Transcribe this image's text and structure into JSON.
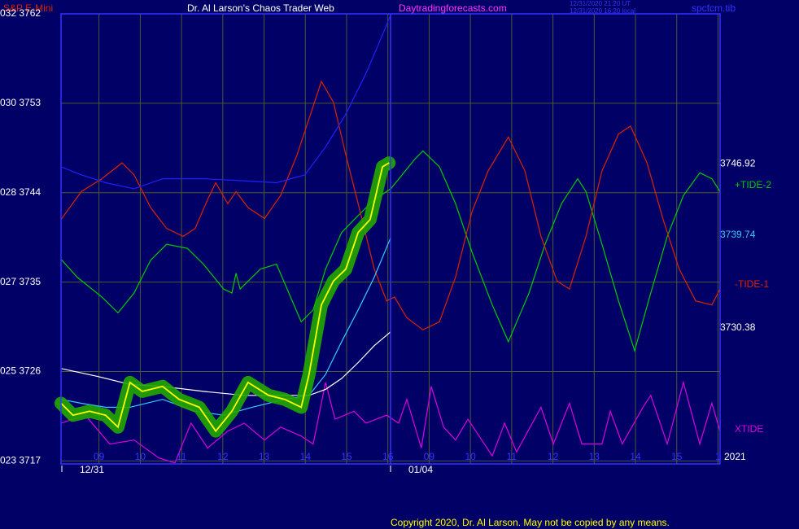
{
  "chart_data": {
    "type": "line",
    "title": "Dr. Al Larson's Chaos Trader Web",
    "instrument": "S&P E-Mini",
    "site": "Daytradingforecasts.com",
    "stamp": [
      "12/31/2020 21:20 UT",
      "12/31/2020 16:20 local"
    ],
    "file": "spcfcm.tib",
    "year": "2021",
    "copyright": "Copyright 2020, Dr. Al Larson. May not be copied by any means.",
    "date_labels": [
      "12/31",
      "01/04"
    ],
    "grid": true,
    "xlim": [
      0.08,
      16.05
    ],
    "ylim": [
      3716.7,
      3762
    ],
    "yticks": [
      {
        "value": 3762,
        "label": "032  3762"
      },
      {
        "value": 3753,
        "label": "030  3753"
      },
      {
        "value": 3744,
        "label": "028  3744"
      },
      {
        "value": 3735,
        "label": "027  3735"
      },
      {
        "value": 3726,
        "label": "025  3726"
      },
      {
        "value": 3717,
        "label": "023  3717"
      }
    ],
    "xticks": [
      {
        "value": 1,
        "label": "09"
      },
      {
        "value": 2,
        "label": "10"
      },
      {
        "value": 3,
        "label": "11"
      },
      {
        "value": 4,
        "label": "12"
      },
      {
        "value": 5,
        "label": "13"
      },
      {
        "value": 6,
        "label": "14"
      },
      {
        "value": 7,
        "label": "15"
      },
      {
        "value": 8,
        "label": "16"
      },
      {
        "value": 9,
        "label": "09"
      },
      {
        "value": 10,
        "label": "10"
      },
      {
        "value": 11,
        "label": "11"
      },
      {
        "value": 12,
        "label": "12"
      },
      {
        "value": 13,
        "label": "13"
      },
      {
        "value": 14,
        "label": "14"
      },
      {
        "value": 15,
        "label": "15"
      },
      {
        "value": 16,
        "label": "1"
      }
    ],
    "series": [
      {
        "name": "+TIDE-2",
        "color": "#00cc00",
        "x": [
          0.08,
          0.47,
          1.07,
          1.46,
          1.85,
          2.25,
          2.64,
          3.14,
          3.53,
          4.02,
          4.22,
          4.32,
          4.42,
          4.91,
          5.3,
          5.6,
          5.9,
          6.19,
          6.49,
          6.88,
          7.28,
          7.67,
          8.07,
          8.66,
          8.85,
          9.25,
          9.64,
          10.04,
          10.53,
          10.92,
          11.42,
          11.81,
          12.21,
          12.6,
          12.8,
          13.19,
          13.59,
          13.98,
          14.37,
          14.77,
          15.16,
          15.56,
          15.85,
          16.05
        ],
        "values": [
          3737.3,
          3735.5,
          3733.5,
          3731.9,
          3733.9,
          3737.2,
          3738.8,
          3738.4,
          3736.8,
          3734.3,
          3733.9,
          3735.9,
          3734.3,
          3736.3,
          3736.8,
          3733.9,
          3731.0,
          3732.2,
          3736.3,
          3740.0,
          3741.7,
          3743.3,
          3744.4,
          3747.4,
          3748.2,
          3746.6,
          3742.9,
          3738.0,
          3732.7,
          3729.0,
          3733.9,
          3738.8,
          3742.9,
          3745.4,
          3744.1,
          3738.8,
          3733.1,
          3728.1,
          3733.9,
          3739.6,
          3743.7,
          3746.0,
          3745.4,
          3744.1
        ]
      },
      {
        "name": "-TIDE-1",
        "color": "#dd2200",
        "x": [
          0.08,
          0.57,
          1.07,
          1.56,
          1.85,
          2.25,
          2.64,
          3.04,
          3.33,
          3.63,
          3.83,
          4.12,
          4.32,
          4.61,
          5.01,
          5.4,
          5.8,
          6.19,
          6.39,
          6.68,
          6.98,
          7.28,
          7.67,
          7.97,
          8.16,
          8.46,
          8.85,
          9.25,
          9.64,
          10.04,
          10.43,
          10.92,
          11.32,
          11.71,
          12.1,
          12.4,
          12.8,
          13.19,
          13.59,
          13.88,
          14.28,
          14.67,
          15.06,
          15.46,
          15.85,
          16.05
        ],
        "values": [
          3741.3,
          3744.1,
          3745.4,
          3747.0,
          3745.8,
          3742.5,
          3740.4,
          3739.6,
          3740.4,
          3743.3,
          3745.0,
          3742.9,
          3744.1,
          3742.5,
          3741.4,
          3743.7,
          3747.8,
          3752.7,
          3755.2,
          3753.1,
          3747.8,
          3742.9,
          3736.3,
          3733.1,
          3733.5,
          3731.4,
          3730.2,
          3731.0,
          3735.5,
          3742.1,
          3746.2,
          3749.6,
          3746.2,
          3739.6,
          3735.1,
          3734.3,
          3739.6,
          3746.2,
          3749.9,
          3750.7,
          3747.0,
          3741.3,
          3736.3,
          3733.1,
          3732.7,
          3734.3
        ]
      },
      {
        "name": "XTIDE",
        "color": "#dd00dd",
        "x": [
          0.08,
          0.67,
          1.26,
          1.85,
          2.45,
          2.84,
          3.23,
          3.63,
          4.12,
          4.52,
          5.01,
          5.4,
          5.9,
          6.19,
          6.49,
          6.72,
          7.18,
          7.47,
          7.97,
          8.26,
          8.46,
          8.81,
          9.05,
          9.35,
          9.64,
          9.94,
          10.53,
          10.83,
          11.12,
          11.71,
          12.01,
          12.4,
          12.7,
          13.19,
          13.39,
          13.68,
          14.18,
          14.37,
          14.77,
          15.16,
          15.56,
          15.85,
          16.05
        ],
        "values": [
          3720.8,
          3721.6,
          3718.7,
          3719.1,
          3717.3,
          3716.8,
          3720.8,
          3718.3,
          3720.0,
          3720.8,
          3719.1,
          3720.4,
          3719.5,
          3718.7,
          3724.9,
          3721.2,
          3722.0,
          3720.8,
          3721.6,
          3720.8,
          3723.2,
          3718.3,
          3724.5,
          3720.4,
          3719.1,
          3721.2,
          3717.5,
          3720.8,
          3717.9,
          3722.4,
          3718.7,
          3722.8,
          3718.7,
          3718.7,
          3722.0,
          3718.7,
          3722.4,
          3723.6,
          3718.7,
          3724.9,
          3718.7,
          3722.8,
          3720.0
        ]
      },
      {
        "color": "#2020ff",
        "x": [
          0.08,
          0.57,
          1.16,
          1.85,
          2.54,
          3.53,
          4.52,
          5.3,
          5.99,
          6.49,
          6.98,
          7.47,
          7.77,
          8.07
        ],
        "values": [
          3746.6,
          3745.8,
          3745.0,
          3744.4,
          3745.4,
          3745.4,
          3745.2,
          3745.0,
          3745.8,
          3748.6,
          3751.9,
          3756.0,
          3758.9,
          3761.9
        ]
      },
      {
        "color": "#33ccff",
        "last_label": 3739.74,
        "x": [
          0.08,
          0.57,
          1.16,
          1.75,
          2.54,
          3.33,
          4.02,
          4.71,
          5.5,
          6.09,
          6.49,
          6.88,
          7.28,
          7.67,
          8.07
        ],
        "values": [
          3723.2,
          3722.8,
          3722.4,
          3722.4,
          3723.2,
          3722.0,
          3721.6,
          3722.4,
          3723.2,
          3723.6,
          3725.7,
          3729.0,
          3732.2,
          3735.5,
          3739.5
        ]
      },
      {
        "color": "#ffffff",
        "last_label": 3730.38,
        "x": [
          0.08,
          0.97,
          1.75,
          2.54,
          3.53,
          4.52,
          5.5,
          6.09,
          6.49,
          6.88,
          7.28,
          7.67,
          8.07
        ],
        "values": [
          3726.3,
          3725.5,
          3724.7,
          3724.5,
          3724.0,
          3723.6,
          3723.6,
          3723.6,
          3724.2,
          3725.3,
          3726.9,
          3728.6,
          3730.0
        ]
      },
      {
        "color": "#ffff00",
        "band_color": "#22aa00",
        "last_label": 3746.92,
        "x": [
          0.08,
          0.37,
          0.77,
          1.16,
          1.46,
          1.75,
          2.05,
          2.54,
          2.94,
          3.43,
          3.83,
          4.22,
          4.61,
          5.11,
          5.5,
          5.9,
          6.09,
          6.39,
          6.68,
          6.98,
          7.28,
          7.57,
          7.87,
          8.03
        ],
        "values": [
          3722.8,
          3721.6,
          3722.0,
          3721.6,
          3720.4,
          3724.9,
          3724.0,
          3724.5,
          3723.2,
          3722.4,
          3720.0,
          3722.0,
          3724.9,
          3723.6,
          3723.2,
          3722.4,
          3725.7,
          3732.7,
          3735.1,
          3736.3,
          3740.0,
          3741.3,
          3746.6,
          3747.0
        ]
      }
    ]
  }
}
